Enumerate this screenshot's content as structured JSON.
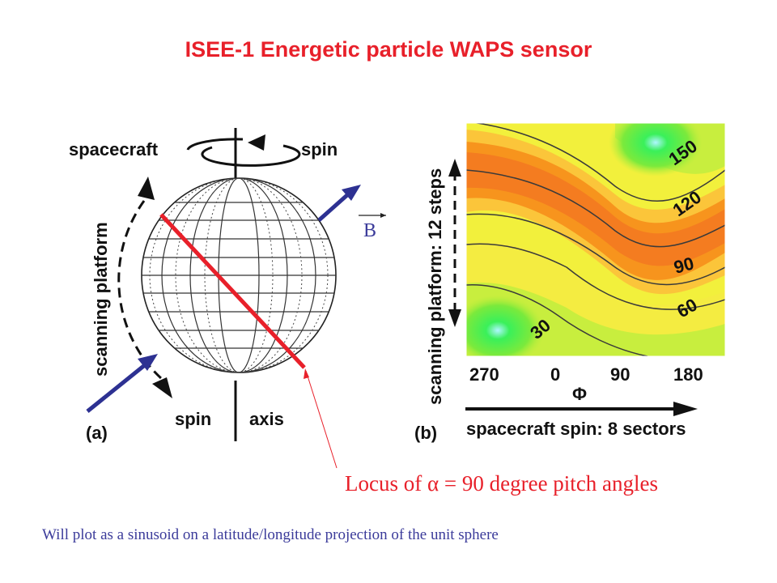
{
  "title": "ISEE-1 Energetic particle WAPS sensor",
  "panel_a": {
    "label_spacecraft": "spacecraft",
    "label_spin_top": "spin",
    "label_scanning": "scanning platform",
    "label_spin_bottom": "spin",
    "label_axis": "axis",
    "panel_label": "(a)"
  },
  "field_label": "B",
  "panel_b": {
    "panel_label": "(b)",
    "y_label": "scanning platform: 12 steps",
    "x_tick_labels": [
      "270",
      "0",
      "90",
      "180"
    ],
    "x_symbol": "Φ",
    "x_arrow_label": "spacecraft spin: 8 sectors",
    "contour_labels": [
      "150",
      "120",
      "90",
      "60",
      "30"
    ]
  },
  "locus_prefix": "Locus of ",
  "locus_symbol": "α",
  "locus_suffix": " = 90 degree pitch angles",
  "note": "Will plot as a sinusoid on a latitude/longitude projection of the unit sphere",
  "colors": {
    "title": "#e8202a",
    "blue_arrow": "#2d3192",
    "red_locus": "#e8202a",
    "orange": "#f7941d",
    "yellow": "#f7f24a",
    "green": "#33e84a",
    "note": "#3b3b9a"
  }
}
